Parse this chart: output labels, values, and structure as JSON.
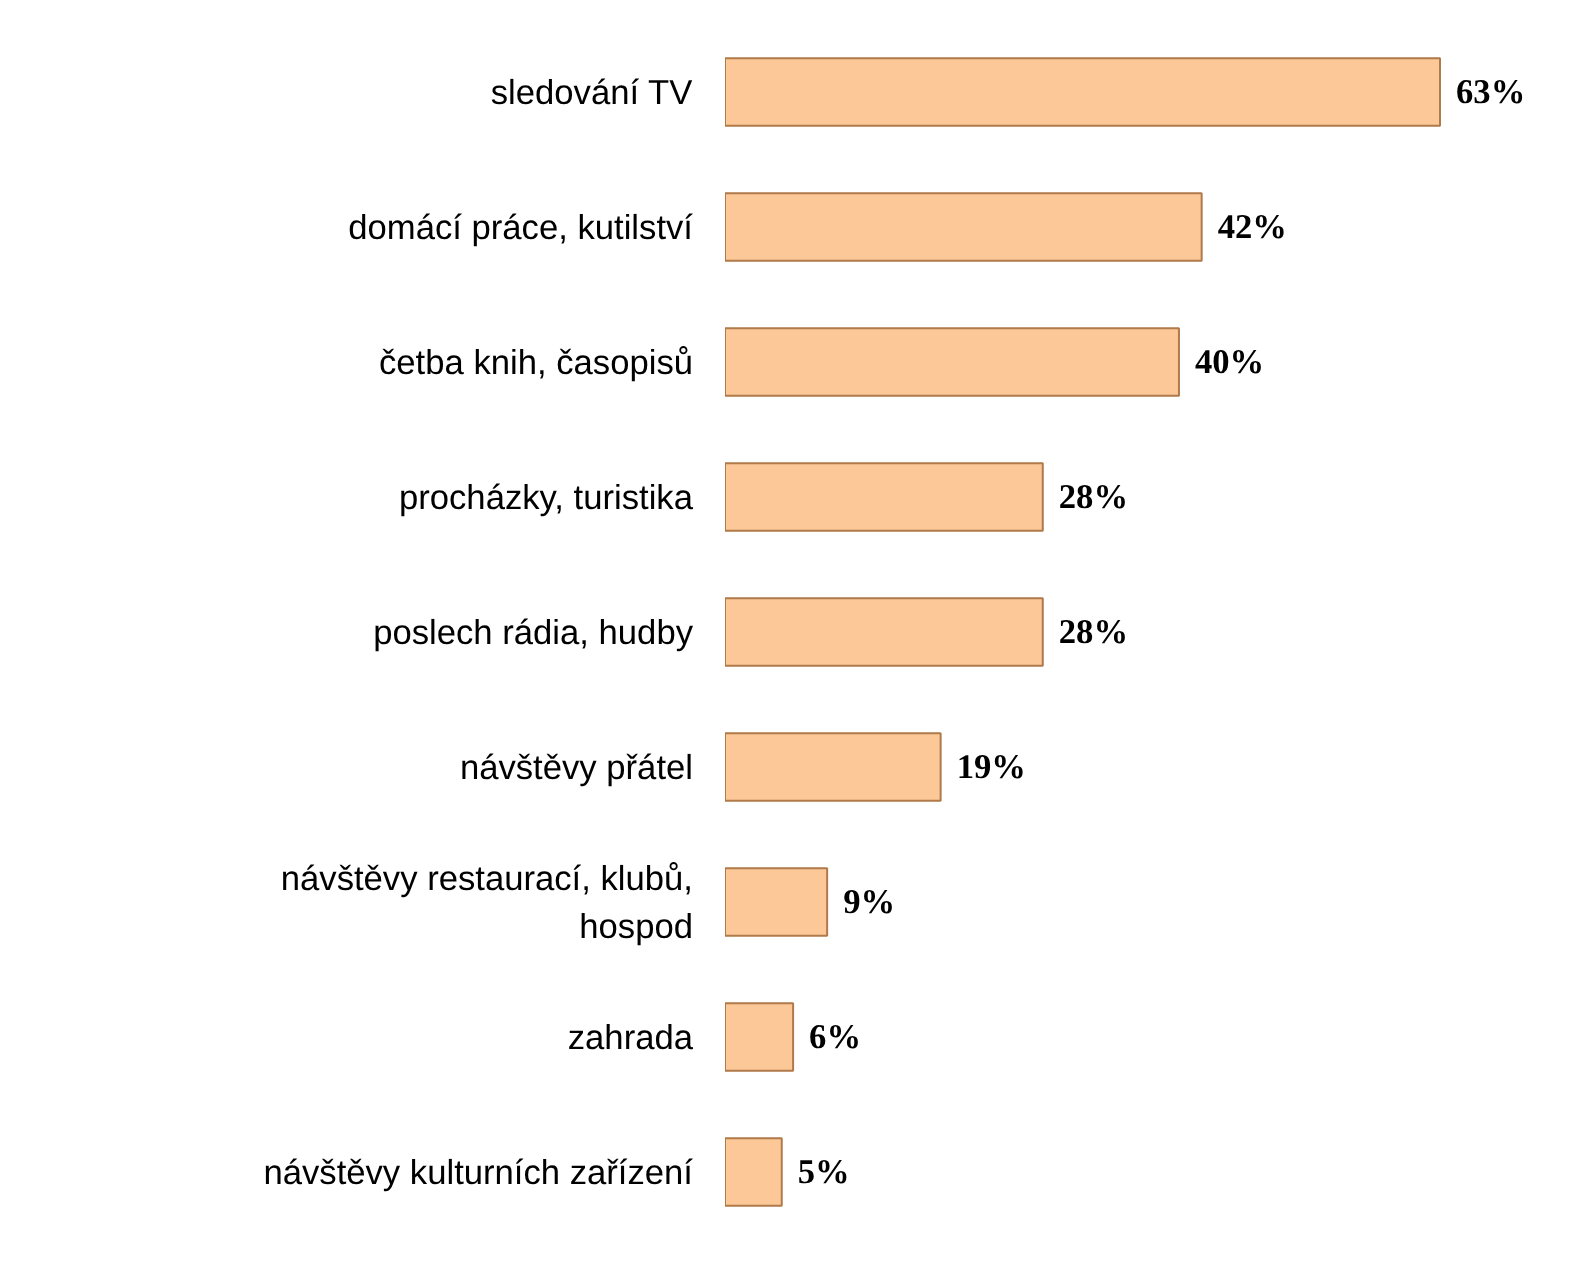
{
  "chart_data": {
    "type": "bar",
    "orientation": "horizontal",
    "color": "#fcc897",
    "categories": [
      "sledování TV",
      "domácí práce, kutilství",
      "četba knih, časopisů",
      "procházky, turistika",
      "poslech rádia, hudby",
      "návštěvy přátel",
      "návštěvy restaurací, klubů,\nhospod",
      "zahrada",
      "návštěvy kulturních zařízení"
    ],
    "values": [
      63,
      42,
      40,
      28,
      28,
      19,
      9,
      6,
      5
    ],
    "value_labels": [
      "63%",
      "42%",
      "40%",
      "28%",
      "28%",
      "19%",
      "9%",
      "6%",
      "5%"
    ]
  }
}
